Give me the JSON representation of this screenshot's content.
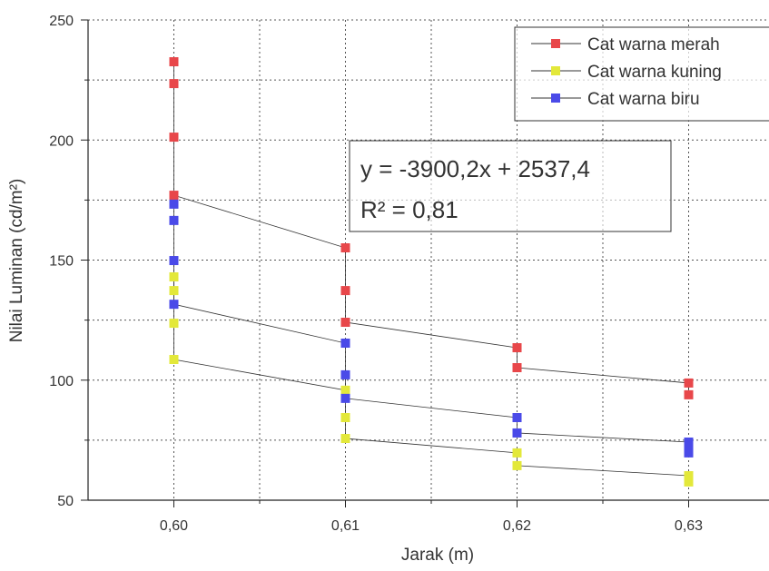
{
  "chart_data": {
    "type": "scatter-line",
    "x_label": "Jarak (m)",
    "y_label": "Nilai Luminan (cd/m²)",
    "annotation": [
      "y = -3900,2x + 2537,4",
      "R² = 0,81"
    ],
    "xlim": [
      0.595,
      0.635
    ],
    "ylim": [
      50,
      250
    ],
    "xticks": [
      {
        "value": 0.6,
        "label": "0,60"
      },
      {
        "value": 0.61,
        "label": "0,61"
      },
      {
        "value": 0.62,
        "label": "0,62"
      },
      {
        "value": 0.63,
        "label": "0,63"
      }
    ],
    "yticks": [
      50,
      100,
      150,
      200,
      250
    ],
    "minor_xticks": [
      0.605,
      0.615,
      0.625
    ],
    "minor_yticks": [
      75,
      125,
      175,
      225
    ],
    "grid": true,
    "legend": "upper right",
    "series": [
      {
        "name": "Cat warna merah",
        "color": "#e8474a",
        "x": [
          0.6,
          0.6,
          0.6,
          0.6,
          0.61,
          0.61,
          0.61,
          0.62,
          0.62,
          0.63,
          0.63
        ],
        "values": [
          232.6,
          223.5,
          201.2,
          177.0,
          155.1,
          137.3,
          124.1,
          113.5,
          105.2,
          98.8,
          93.9
        ]
      },
      {
        "name": "Cat warna kuning",
        "color": "#e3e83a",
        "x": [
          0.6,
          0.6,
          0.6,
          0.6,
          0.61,
          0.61,
          0.61,
          0.62,
          0.62,
          0.63,
          0.63
        ],
        "values": [
          143.0,
          137.3,
          123.7,
          108.6,
          95.8,
          84.4,
          75.7,
          69.7,
          64.4,
          60.2,
          57.6
        ]
      },
      {
        "name": "Cat warna biru",
        "color": "#4a4ae8",
        "x": [
          0.6,
          0.6,
          0.6,
          0.6,
          0.61,
          0.61,
          0.61,
          0.62,
          0.62,
          0.63,
          0.63,
          0.63
        ],
        "values": [
          173.3,
          166.5,
          149.8,
          131.6,
          115.4,
          102.2,
          92.4,
          84.4,
          78.0,
          74.2,
          72.0,
          69.7
        ]
      }
    ]
  }
}
